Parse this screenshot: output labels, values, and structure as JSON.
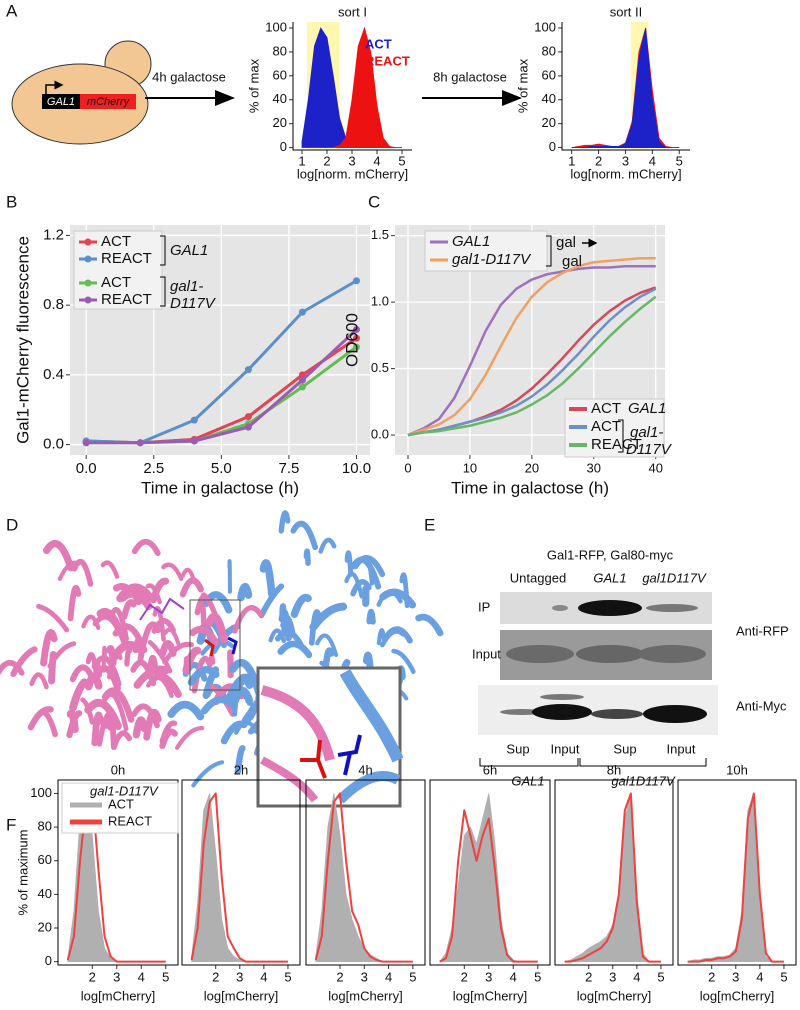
{
  "panel_labels": [
    "A",
    "B",
    "C",
    "D",
    "E",
    "F"
  ],
  "panel_a": {
    "construct": [
      "GAL1",
      "mCherry"
    ],
    "steps": [
      "4h galactose",
      "8h galactose"
    ]
  },
  "panel_e": {
    "header": "Gal1-RFP, Gal80-myc",
    "columns": [
      "Untagged",
      "GAL1",
      "gal1D117V"
    ],
    "rows": [
      "IP",
      "Input"
    ],
    "antibodies": [
      "Anti-RFP",
      "Anti-Myc"
    ],
    "lanes": [
      "Sup",
      "Input",
      "Sup",
      "Input"
    ],
    "groups": [
      "GAL1",
      "gal1D117V"
    ]
  },
  "chart_data": [
    {
      "type": "area",
      "title": "sort I",
      "xlabel": "log[norm. mCherry]",
      "ylabel": "% of max",
      "x": [
        1,
        1.25,
        1.5,
        1.75,
        2,
        2.25,
        2.5,
        2.75,
        3,
        3.25,
        3.5,
        3.75,
        4,
        4.25,
        4.5,
        4.75,
        5
      ],
      "xlim": [
        0.64,
        5.4
      ],
      "ylim": [
        -2,
        105
      ],
      "xticks": [
        1,
        2,
        3,
        4,
        5
      ],
      "yticks": [
        0,
        20,
        40,
        60,
        80,
        100
      ],
      "highlight": [
        1.2,
        2.5
      ],
      "highlight_color": "#fff6b0",
      "series": [
        {
          "name": "ACT",
          "color": "#1d22c8",
          "style": "area",
          "values": [
            5,
            40,
            85,
            100,
            92,
            60,
            25,
            8,
            2,
            1,
            0,
            0,
            0,
            0,
            0,
            0,
            0
          ]
        },
        {
          "name": "REACT",
          "color": "#ee1111",
          "style": "area",
          "values": [
            0,
            0,
            0,
            0,
            0,
            0,
            2,
            8,
            40,
            85,
            100,
            80,
            35,
            8,
            1,
            0,
            0
          ]
        }
      ]
    },
    {
      "type": "area",
      "title": "sort II",
      "xlabel": "log[norm. mCherry]",
      "ylabel": "% of max",
      "x": [
        1,
        1.25,
        1.5,
        1.75,
        2,
        2.25,
        2.5,
        2.75,
        3,
        3.25,
        3.5,
        3.75,
        4,
        4.25,
        4.5,
        4.75,
        5
      ],
      "xlim": [
        0.64,
        5.4
      ],
      "ylim": [
        -2,
        105
      ],
      "xticks": [
        1,
        2,
        3,
        4,
        5
      ],
      "yticks": [
        0,
        20,
        40,
        60,
        80,
        100
      ],
      "highlight": [
        3.2,
        3.85
      ],
      "highlight_color": "#fff6b0",
      "series": [
        {
          "color": "#ee1111",
          "style": "area",
          "values": [
            0,
            1,
            2,
            2,
            3,
            2,
            1,
            1,
            4,
            22,
            80,
            100,
            48,
            8,
            1,
            0,
            0
          ]
        },
        {
          "color": "#1d22c8",
          "style": "area",
          "values": [
            0,
            0,
            0,
            1,
            1,
            1,
            1,
            1,
            3,
            20,
            75,
            100,
            40,
            5,
            0,
            0,
            0
          ]
        }
      ]
    },
    {
      "type": "line",
      "xlabel": "Time in galactose (h)",
      "ylabel": "Gal1-mCherry fluorescence",
      "x": [
        0,
        2,
        4,
        6,
        8,
        10
      ],
      "xlim": [
        -0.6,
        10.5
      ],
      "ylim": [
        -0.06,
        1.26
      ],
      "xticks": [
        {
          "value": 0,
          "label": "0.0"
        },
        {
          "value": 2.5,
          "label": "2.5"
        },
        {
          "value": 5,
          "label": "5.0"
        },
        {
          "value": 7.5,
          "label": "7.5"
        },
        {
          "value": 10,
          "label": "10.0"
        }
      ],
      "yticks": [
        {
          "value": 0,
          "label": "0.0"
        },
        {
          "value": 0.4,
          "label": "0.4"
        },
        {
          "value": 0.8,
          "label": "0.8"
        },
        {
          "value": 1.2,
          "label": "1.2"
        }
      ],
      "grid": true,
      "background": "#e5e5e5",
      "markers": true,
      "legend_groups": [
        [
          "GAL1"
        ],
        [
          "gal1-",
          "D117V"
        ]
      ],
      "series": [
        {
          "name": "ACT",
          "color": "#e8414f",
          "style": "line",
          "values": [
            0.02,
            0.01,
            0.03,
            0.16,
            0.4,
            0.61
          ]
        },
        {
          "name": "REACT",
          "color": "#5b8fc9",
          "style": "line",
          "values": [
            0.02,
            0.01,
            0.14,
            0.43,
            0.76,
            0.94
          ]
        },
        {
          "name": "ACT",
          "color": "#66bb55",
          "style": "line",
          "values": [
            0.01,
            0.01,
            0.02,
            0.12,
            0.33,
            0.56
          ]
        },
        {
          "name": "REACT",
          "color": "#9a5bb5",
          "style": "line",
          "values": [
            0.01,
            0.01,
            0.02,
            0.1,
            0.37,
            0.66
          ]
        }
      ]
    },
    {
      "type": "line",
      "xlabel": "Time in galactose (h)",
      "ylabel": "OD600",
      "x": [
        0,
        2.5,
        5,
        7.5,
        10,
        12.5,
        15,
        17.5,
        20,
        22.5,
        25,
        27.5,
        30,
        32.5,
        35,
        37.5,
        40
      ],
      "xlim": [
        -2.1,
        41.5
      ],
      "ylim": [
        -0.15,
        1.58
      ],
      "xticks": [
        0,
        10,
        20,
        30,
        40
      ],
      "yticks": [
        {
          "value": 0,
          "label": "0.0"
        },
        {
          "value": 0.5,
          "label": "0.5"
        },
        {
          "value": 1,
          "label": "1.0"
        },
        {
          "value": 1.5,
          "label": "1.5"
        }
      ],
      "grid": true,
      "background": "#e5e5e5",
      "top_legend_labels": [
        "gal",
        "gal"
      ],
      "legend_groups": [
        [
          "GAL1"
        ],
        [
          "gal1-",
          "D117V"
        ]
      ],
      "series": [
        {
          "name": "GAL1",
          "color": "#a070c0",
          "style": "line",
          "values": [
            0,
            0.05,
            0.12,
            0.28,
            0.52,
            0.78,
            0.98,
            1.1,
            1.17,
            1.21,
            1.23,
            1.25,
            1.26,
            1.26,
            1.27,
            1.27,
            1.27
          ]
        },
        {
          "name": "gal1-D117V",
          "color": "#f0a060",
          "style": "line",
          "values": [
            0,
            0.04,
            0.08,
            0.15,
            0.27,
            0.45,
            0.67,
            0.88,
            1.04,
            1.15,
            1.22,
            1.27,
            1.3,
            1.31,
            1.32,
            1.33,
            1.33
          ]
        },
        {
          "name": "ACT",
          "color": "#d9485a",
          "style": "line",
          "values": [
            0,
            0.02,
            0.04,
            0.07,
            0.1,
            0.14,
            0.19,
            0.26,
            0.35,
            0.46,
            0.58,
            0.71,
            0.83,
            0.93,
            1.01,
            1.07,
            1.11
          ]
        },
        {
          "name": "ACT",
          "color": "#6f8fc8",
          "style": "line",
          "values": [
            0,
            0.02,
            0.04,
            0.07,
            0.1,
            0.13,
            0.17,
            0.22,
            0.29,
            0.38,
            0.49,
            0.61,
            0.74,
            0.86,
            0.96,
            1.04,
            1.1
          ]
        },
        {
          "name": "REACT",
          "color": "#66b866",
          "style": "line",
          "values": [
            0,
            0.02,
            0.03,
            0.05,
            0.07,
            0.1,
            0.13,
            0.17,
            0.23,
            0.3,
            0.39,
            0.5,
            0.62,
            0.74,
            0.85,
            0.95,
            1.04
          ]
        }
      ]
    },
    {
      "type": "area",
      "title": "0h",
      "xlabel": "log[mCherry]",
      "ylabel": "% of maximum",
      "legend_title": "gal1-D117V",
      "box": true,
      "x": [
        1,
        1.25,
        1.5,
        1.75,
        2,
        2.25,
        2.5,
        2.75,
        3,
        3.25,
        3.5,
        3.75,
        4,
        4.25,
        4.5,
        4.75,
        5
      ],
      "xlim": [
        0.6,
        5.5
      ],
      "ylim": [
        -2,
        108
      ],
      "xticks": [
        2,
        3,
        4,
        5
      ],
      "yticks": [
        0,
        20,
        40,
        60,
        80,
        100
      ],
      "series": [
        {
          "name": "ACT",
          "color": "#b0b0b0",
          "style": "area",
          "values": [
            2,
            30,
            85,
            100,
            75,
            30,
            8,
            2,
            0,
            0,
            0,
            0,
            0,
            0,
            0,
            0,
            0
          ]
        },
        {
          "name": "REACT",
          "color": "#f04040",
          "style": "line",
          "values": [
            1,
            15,
            60,
            95,
            100,
            55,
            15,
            3,
            0,
            0,
            0,
            0,
            0,
            0,
            0,
            0,
            0
          ]
        }
      ]
    },
    {
      "type": "area",
      "title": "2h",
      "xlabel": "log[mCherry]",
      "box": true,
      "x": [
        1,
        1.25,
        1.5,
        1.75,
        2,
        2.25,
        2.5,
        2.75,
        3,
        3.25,
        3.5,
        3.75,
        4,
        4.25,
        4.5,
        4.75,
        5
      ],
      "xlim": [
        0.6,
        5.5
      ],
      "ylim": [
        -2,
        108
      ],
      "xticks": [
        2,
        3,
        4,
        5
      ],
      "series": [
        {
          "color": "#b0b0b0",
          "style": "area",
          "values": [
            3,
            35,
            90,
            100,
            65,
            25,
            8,
            3,
            1,
            0,
            0,
            0,
            0,
            0,
            0,
            0,
            0
          ]
        },
        {
          "color": "#f04040",
          "style": "line",
          "values": [
            1,
            20,
            70,
            95,
            100,
            50,
            15,
            8,
            2,
            0,
            0,
            0,
            0,
            0,
            0,
            0,
            0
          ]
        }
      ]
    },
    {
      "type": "area",
      "title": "4h",
      "xlabel": "log[mCherry]",
      "box": true,
      "x": [
        1,
        1.25,
        1.5,
        1.75,
        2,
        2.25,
        2.5,
        2.75,
        3,
        3.25,
        3.5,
        3.75,
        4,
        4.25,
        4.5,
        4.75,
        5
      ],
      "xlim": [
        0.6,
        5.5
      ],
      "ylim": [
        -2,
        108
      ],
      "xticks": [
        2,
        3,
        4,
        5
      ],
      "series": [
        {
          "color": "#b0b0b0",
          "style": "area",
          "values": [
            3,
            30,
            80,
            100,
            75,
            40,
            25,
            15,
            8,
            4,
            2,
            0,
            0,
            0,
            0,
            0,
            0
          ]
        },
        {
          "color": "#f04040",
          "style": "line",
          "values": [
            1,
            15,
            60,
            95,
            100,
            60,
            30,
            22,
            8,
            3,
            1,
            0,
            0,
            0,
            0,
            0,
            0
          ]
        }
      ]
    },
    {
      "type": "area",
      "title": "6h",
      "xlabel": "log[mCherry]",
      "box": true,
      "x": [
        1,
        1.25,
        1.5,
        1.75,
        2,
        2.25,
        2.5,
        2.75,
        3,
        3.25,
        3.5,
        3.75,
        4,
        4.25,
        4.5,
        4.75,
        5
      ],
      "xlim": [
        0.6,
        5.5
      ],
      "ylim": [
        -2,
        108
      ],
      "xticks": [
        2,
        3,
        4,
        5
      ],
      "series": [
        {
          "color": "#b0b0b0",
          "style": "area",
          "values": [
            0,
            5,
            20,
            45,
            75,
            80,
            70,
            85,
            100,
            70,
            25,
            5,
            1,
            0,
            0,
            0,
            0
          ]
        },
        {
          "color": "#f04040",
          "style": "line",
          "values": [
            0,
            2,
            15,
            60,
            90,
            75,
            60,
            75,
            85,
            55,
            20,
            4,
            0,
            0,
            0,
            0,
            0
          ]
        }
      ]
    },
    {
      "type": "area",
      "title": "8h",
      "xlabel": "log[mCherry]",
      "box": true,
      "x": [
        1,
        1.25,
        1.5,
        1.75,
        2,
        2.25,
        2.5,
        2.75,
        3,
        3.25,
        3.5,
        3.75,
        4,
        4.25,
        4.5,
        4.75,
        5
      ],
      "xlim": [
        0.6,
        5.5
      ],
      "ylim": [
        -2,
        108
      ],
      "xticks": [
        2,
        3,
        4,
        5
      ],
      "series": [
        {
          "color": "#b0b0b0",
          "style": "area",
          "values": [
            0,
            1,
            3,
            5,
            8,
            10,
            12,
            15,
            22,
            40,
            85,
            100,
            40,
            5,
            0,
            0,
            0
          ]
        },
        {
          "color": "#f04040",
          "style": "line",
          "values": [
            0,
            0,
            1,
            2,
            4,
            6,
            8,
            12,
            20,
            40,
            90,
            100,
            35,
            3,
            0,
            0,
            0
          ]
        }
      ]
    },
    {
      "type": "area",
      "title": "10h",
      "xlabel": "log[mCherry]",
      "box": true,
      "x": [
        1,
        1.25,
        1.5,
        1.75,
        2,
        2.25,
        2.5,
        2.75,
        3,
        3.25,
        3.5,
        3.75,
        4,
        4.25,
        4.5,
        4.75,
        5
      ],
      "xlim": [
        0.6,
        5.5
      ],
      "ylim": [
        -2,
        108
      ],
      "xticks": [
        2,
        3,
        4,
        5
      ],
      "series": [
        {
          "color": "#b0b0b0",
          "style": "area",
          "values": [
            0,
            1,
            1,
            2,
            2,
            3,
            3,
            4,
            8,
            30,
            90,
            100,
            35,
            3,
            0,
            0,
            0
          ]
        },
        {
          "color": "#f04040",
          "style": "line",
          "values": [
            0,
            0,
            0,
            1,
            1,
            2,
            2,
            3,
            6,
            25,
            85,
            100,
            40,
            5,
            0,
            0,
            0
          ]
        }
      ]
    }
  ]
}
